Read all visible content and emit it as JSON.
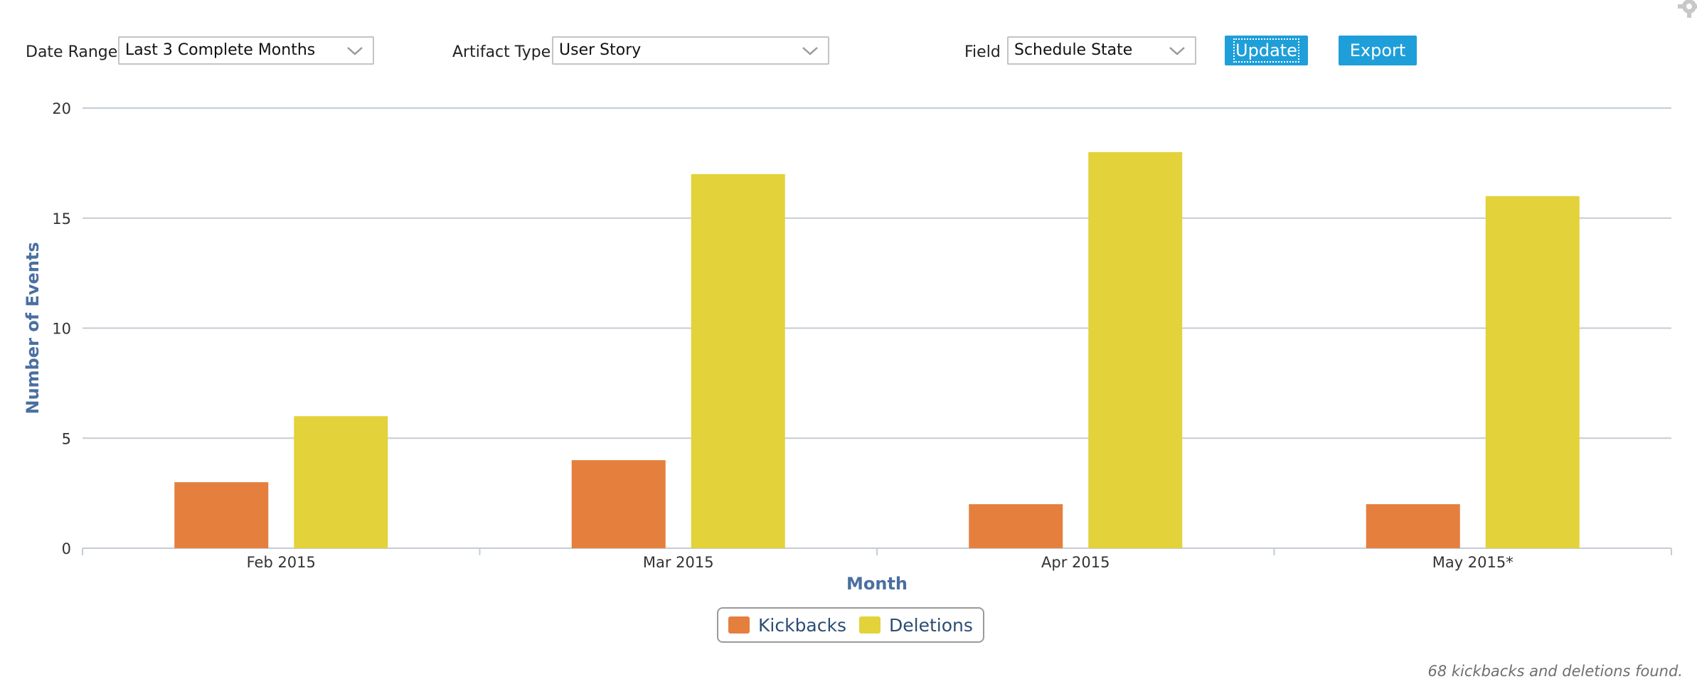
{
  "toolbar": {
    "date_range_label": "Date Range",
    "date_range_value": "Last 3 Complete Months",
    "artifact_type_label": "Artifact Type",
    "artifact_type_value": "User Story",
    "field_label": "Field",
    "field_value": "Schedule State",
    "update_label": "Update",
    "export_label": "Export"
  },
  "colors": {
    "kickbacks": "#e57f3d",
    "deletions": "#e3d23a",
    "button": "#1e9fd9",
    "axis_title": "#4a6fa1",
    "gridline": "#c5ccd4"
  },
  "chart_data": {
    "type": "bar",
    "categories": [
      "Feb 2015",
      "Mar 2015",
      "Apr 2015",
      "May 2015*"
    ],
    "series": [
      {
        "name": "Kickbacks",
        "values": [
          3,
          4,
          2,
          2
        ]
      },
      {
        "name": "Deletions",
        "values": [
          6,
          17,
          18,
          16
        ]
      }
    ],
    "xlabel": "Month",
    "ylabel": "Number of Events",
    "ylim": [
      0,
      20
    ],
    "yticks": [
      0,
      5,
      10,
      15,
      20
    ],
    "grid": true,
    "legend_position": "bottom-center"
  },
  "footer_text": "68 kickbacks and deletions found."
}
